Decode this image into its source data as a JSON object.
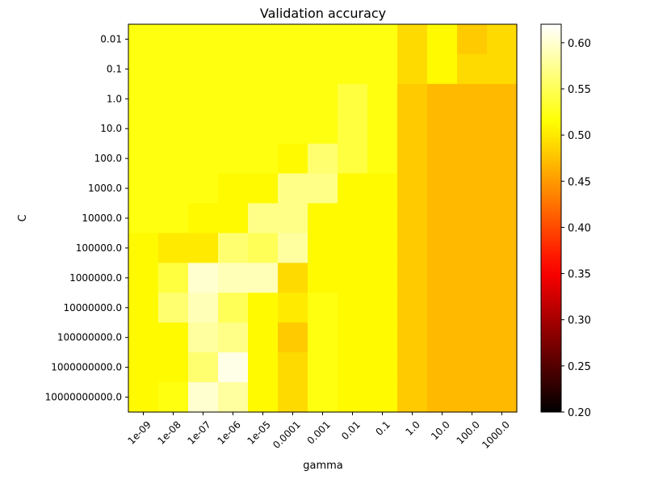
{
  "chart_data": {
    "type": "heatmap",
    "title": "Validation accuracy",
    "xlabel": "gamma",
    "ylabel": "C",
    "x_categories": [
      "1e-09",
      "1e-08",
      "1e-07",
      "1e-06",
      "1e-05",
      "0.0001",
      "0.001",
      "0.01",
      "0.1",
      "1.0",
      "10.0",
      "100.0",
      "1000.0"
    ],
    "y_categories": [
      "0.01",
      "0.1",
      "1.0",
      "10.0",
      "100.0",
      "1000.0",
      "10000.0",
      "100000.0",
      "1000000.0",
      "10000000.0",
      "100000000.0",
      "1000000000.0",
      "10000000000.0"
    ],
    "values": [
      [
        0.52,
        0.52,
        0.52,
        0.52,
        0.52,
        0.52,
        0.52,
        0.52,
        0.52,
        0.49,
        0.51,
        0.48,
        0.49
      ],
      [
        0.52,
        0.52,
        0.52,
        0.52,
        0.52,
        0.52,
        0.52,
        0.52,
        0.52,
        0.49,
        0.51,
        0.49,
        0.49
      ],
      [
        0.52,
        0.52,
        0.52,
        0.52,
        0.52,
        0.52,
        0.52,
        0.54,
        0.52,
        0.48,
        0.47,
        0.47,
        0.47
      ],
      [
        0.52,
        0.52,
        0.52,
        0.52,
        0.52,
        0.52,
        0.52,
        0.54,
        0.52,
        0.48,
        0.47,
        0.47,
        0.47
      ],
      [
        0.52,
        0.52,
        0.52,
        0.52,
        0.52,
        0.51,
        0.56,
        0.54,
        0.52,
        0.48,
        0.47,
        0.47,
        0.47
      ],
      [
        0.52,
        0.52,
        0.52,
        0.51,
        0.51,
        0.57,
        0.57,
        0.51,
        0.51,
        0.48,
        0.47,
        0.47,
        0.47
      ],
      [
        0.52,
        0.52,
        0.51,
        0.51,
        0.57,
        0.57,
        0.51,
        0.51,
        0.51,
        0.48,
        0.47,
        0.47,
        0.47
      ],
      [
        0.51,
        0.5,
        0.5,
        0.56,
        0.55,
        0.58,
        0.51,
        0.51,
        0.51,
        0.48,
        0.47,
        0.47,
        0.47
      ],
      [
        0.51,
        0.54,
        0.6,
        0.59,
        0.59,
        0.49,
        0.51,
        0.51,
        0.51,
        0.48,
        0.47,
        0.47,
        0.47
      ],
      [
        0.51,
        0.56,
        0.59,
        0.55,
        0.51,
        0.5,
        0.52,
        0.51,
        0.51,
        0.48,
        0.47,
        0.47,
        0.47
      ],
      [
        0.51,
        0.51,
        0.58,
        0.57,
        0.51,
        0.48,
        0.52,
        0.51,
        0.51,
        0.48,
        0.47,
        0.47,
        0.47
      ],
      [
        0.51,
        0.51,
        0.56,
        0.61,
        0.51,
        0.49,
        0.52,
        0.51,
        0.51,
        0.48,
        0.47,
        0.47,
        0.47
      ],
      [
        0.51,
        0.52,
        0.6,
        0.58,
        0.51,
        0.49,
        0.52,
        0.51,
        0.51,
        0.48,
        0.47,
        0.47,
        0.47
      ]
    ],
    "vmin": 0.2,
    "vmax": 0.62,
    "colormap": "hot",
    "colorbar_ticks": [
      "0.20",
      "0.25",
      "0.30",
      "0.35",
      "0.40",
      "0.45",
      "0.50",
      "0.55",
      "0.60"
    ],
    "x_tick_rotation_deg": 45,
    "grid": false
  }
}
